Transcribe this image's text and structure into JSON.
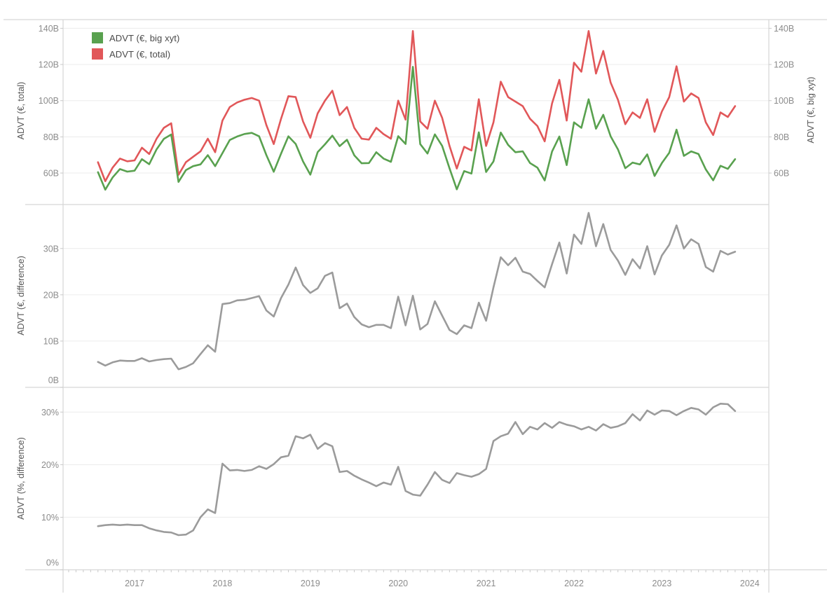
{
  "months": [
    "2016-08",
    "2016-09",
    "2016-10",
    "2016-11",
    "2016-12",
    "2017-01",
    "2017-02",
    "2017-03",
    "2017-04",
    "2017-05",
    "2017-06",
    "2017-07",
    "2017-08",
    "2017-09",
    "2017-10",
    "2017-11",
    "2017-12",
    "2018-01",
    "2018-02",
    "2018-03",
    "2018-04",
    "2018-05",
    "2018-06",
    "2018-07",
    "2018-08",
    "2018-09",
    "2018-10",
    "2018-11",
    "2018-12",
    "2019-01",
    "2019-02",
    "2019-03",
    "2019-04",
    "2019-05",
    "2019-06",
    "2019-07",
    "2019-08",
    "2019-09",
    "2019-10",
    "2019-11",
    "2019-12",
    "2020-01",
    "2020-02",
    "2020-03",
    "2020-04",
    "2020-05",
    "2020-06",
    "2020-07",
    "2020-08",
    "2020-09",
    "2020-10",
    "2020-11",
    "2020-12",
    "2021-01",
    "2021-02",
    "2021-03",
    "2021-04",
    "2021-05",
    "2021-06",
    "2021-07",
    "2021-08",
    "2021-09",
    "2021-10",
    "2021-11",
    "2021-12",
    "2022-01",
    "2022-02",
    "2022-03",
    "2022-04",
    "2022-05",
    "2022-06",
    "2022-07",
    "2022-08",
    "2022-09",
    "2022-10",
    "2022-11",
    "2022-12",
    "2023-01",
    "2023-02",
    "2023-03",
    "2023-04",
    "2023-05",
    "2023-06",
    "2023-07",
    "2023-08",
    "2023-09",
    "2023-10",
    "2023-11"
  ],
  "x_axis": {
    "year_labels": [
      "2017",
      "2018",
      "2019",
      "2020",
      "2021",
      "2022",
      "2023",
      "2024"
    ]
  },
  "palette": {
    "green": "#59a14f",
    "red": "#e15759",
    "gray": "#9b9b9b",
    "grid": "#ececec",
    "border": "#d6d6d6",
    "tick": "#c9c9c9"
  },
  "chart_data": [
    {
      "type": "line",
      "ylabel_left": "ADVT (€, total)",
      "ylabel_right": "ADVT (€, big xyt)",
      "ylim": [
        42.6,
        144.8
      ],
      "yticks": [
        {
          "v": 60,
          "label": "60B"
        },
        {
          "v": 80,
          "label": "80B"
        },
        {
          "v": 100,
          "label": "100B"
        },
        {
          "v": 120,
          "label": "120B"
        },
        {
          "v": 140,
          "label": "140B"
        }
      ],
      "series": [
        {
          "name": "ADVT (€, big xyt)",
          "color": "#59a14f",
          "values": [
            60.5,
            50.8,
            57.6,
            62.2,
            60.8,
            61.3,
            67.7,
            64.9,
            73.1,
            78.9,
            81.3,
            55.1,
            61.6,
            63.8,
            64.8,
            69.9,
            63.8,
            71.0,
            78.3,
            80.2,
            81.6,
            82.2,
            80.3,
            69.9,
            60.7,
            70.7,
            80.3,
            76.1,
            66.4,
            59.1,
            71.6,
            75.9,
            80.7,
            74.9,
            78.4,
            69.8,
            65.4,
            65.5,
            71.5,
            68.0,
            66.2,
            80.4,
            76.1,
            118.7,
            76.0,
            70.8,
            81.4,
            75.0,
            62.6,
            51.0,
            61.1,
            59.7,
            82.5,
            60.6,
            66.4,
            82.4,
            75.6,
            71.5,
            72.0,
            65.5,
            63.0,
            55.9,
            71.9,
            80.2,
            64.4,
            88.0,
            85.0,
            100.8,
            84.5,
            92.2,
            80.3,
            73.1,
            62.7,
            65.8,
            64.8,
            70.3,
            58.4,
            65.5,
            71.2,
            84.0,
            69.5,
            72.0,
            70.5,
            62.0,
            56.0,
            64.0,
            62.3,
            67.7
          ]
        },
        {
          "name": "ADVT (€, total)",
          "color": "#e15759",
          "values": [
            66.0,
            55.5,
            63.0,
            68.0,
            66.5,
            67.0,
            74.0,
            70.5,
            79.0,
            85.0,
            87.5,
            59.0,
            66.0,
            69.0,
            72.0,
            79.0,
            71.5,
            89.0,
            96.5,
            99.0,
            100.5,
            101.5,
            100.0,
            86.5,
            76.0,
            90.0,
            102.5,
            102.0,
            88.5,
            79.5,
            93.0,
            100.0,
            105.5,
            92.0,
            96.5,
            85.0,
            79.0,
            78.5,
            85.0,
            81.5,
            79.0,
            100.0,
            89.5,
            138.5,
            88.5,
            84.5,
            100.0,
            90.5,
            75.0,
            62.5,
            74.5,
            72.5,
            100.8,
            75.0,
            88.0,
            110.5,
            102.0,
            99.5,
            97.0,
            90.0,
            86.0,
            77.5,
            98.5,
            111.5,
            89.0,
            121.0,
            116.0,
            138.5,
            115.0,
            127.5,
            110.0,
            100.5,
            87.0,
            93.5,
            90.5,
            100.8,
            82.8,
            94.0,
            102.0,
            119.0,
            99.5,
            104.0,
            101.5,
            88.0,
            81.0,
            93.5,
            91.0,
            97.0
          ]
        }
      ]
    },
    {
      "type": "line",
      "ylabel_left": "ADVT (€, difference)",
      "ylim": [
        0,
        39.5
      ],
      "yticks": [
        {
          "v": 0,
          "label": "0B"
        },
        {
          "v": 10,
          "label": "10B"
        },
        {
          "v": 20,
          "label": "20B"
        },
        {
          "v": 30,
          "label": "30B"
        }
      ],
      "series": [
        {
          "name": "ADVT (€, difference)",
          "color": "#9b9b9b",
          "values": [
            5.5,
            4.7,
            5.4,
            5.8,
            5.7,
            5.7,
            6.3,
            5.6,
            5.9,
            6.1,
            6.2,
            3.9,
            4.4,
            5.2,
            7.2,
            9.1,
            7.7,
            18.0,
            18.2,
            18.8,
            18.9,
            19.3,
            19.7,
            16.6,
            15.3,
            19.3,
            22.2,
            25.9,
            22.1,
            20.4,
            21.4,
            24.1,
            24.8,
            17.1,
            18.1,
            15.2,
            13.6,
            13.0,
            13.5,
            13.5,
            12.8,
            19.6,
            13.4,
            19.8,
            12.5,
            13.7,
            18.6,
            15.5,
            12.4,
            11.5,
            13.4,
            12.8,
            18.3,
            14.4,
            21.6,
            28.1,
            26.4,
            28.0,
            25.0,
            24.5,
            23.0,
            21.6,
            26.6,
            31.3,
            24.6,
            33.0,
            31.0,
            37.7,
            30.5,
            35.3,
            29.7,
            27.4,
            24.3,
            27.7,
            25.7,
            30.5,
            24.4,
            28.5,
            30.8,
            35.0,
            30.0,
            32.0,
            31.0,
            26.0,
            25.0,
            29.5,
            28.7,
            29.3
          ]
        }
      ]
    },
    {
      "type": "line",
      "ylabel_left": "ADVT (%, difference)",
      "ylim": [
        0,
        34.7
      ],
      "yticks": [
        {
          "v": 0,
          "label": "0%"
        },
        {
          "v": 10,
          "label": "10%"
        },
        {
          "v": 20,
          "label": "20%"
        },
        {
          "v": 30,
          "label": "30%"
        }
      ],
      "series": [
        {
          "name": "ADVT (%, difference)",
          "color": "#9b9b9b",
          "values": [
            8.3,
            8.5,
            8.6,
            8.5,
            8.6,
            8.5,
            8.5,
            7.9,
            7.5,
            7.2,
            7.1,
            6.6,
            6.7,
            7.5,
            10.0,
            11.5,
            10.8,
            20.2,
            18.9,
            19.0,
            18.8,
            19.0,
            19.7,
            19.2,
            20.1,
            21.4,
            21.7,
            25.4,
            25.0,
            25.7,
            23.0,
            24.1,
            23.5,
            18.6,
            18.8,
            17.9,
            17.2,
            16.6,
            15.9,
            16.6,
            16.2,
            19.6,
            15.0,
            14.3,
            14.1,
            16.2,
            18.6,
            17.1,
            16.5,
            18.4,
            18.0,
            17.7,
            18.2,
            19.2,
            24.5,
            25.4,
            25.9,
            28.1,
            25.8,
            27.2,
            26.7,
            27.9,
            27.0,
            28.1,
            27.6,
            27.3,
            26.7,
            27.2,
            26.5,
            27.7,
            27.0,
            27.3,
            27.9,
            29.6,
            28.4,
            30.3,
            29.5,
            30.3,
            30.2,
            29.4,
            30.2,
            30.8,
            30.5,
            29.5,
            30.9,
            31.6,
            31.5,
            30.2
          ]
        }
      ]
    }
  ]
}
